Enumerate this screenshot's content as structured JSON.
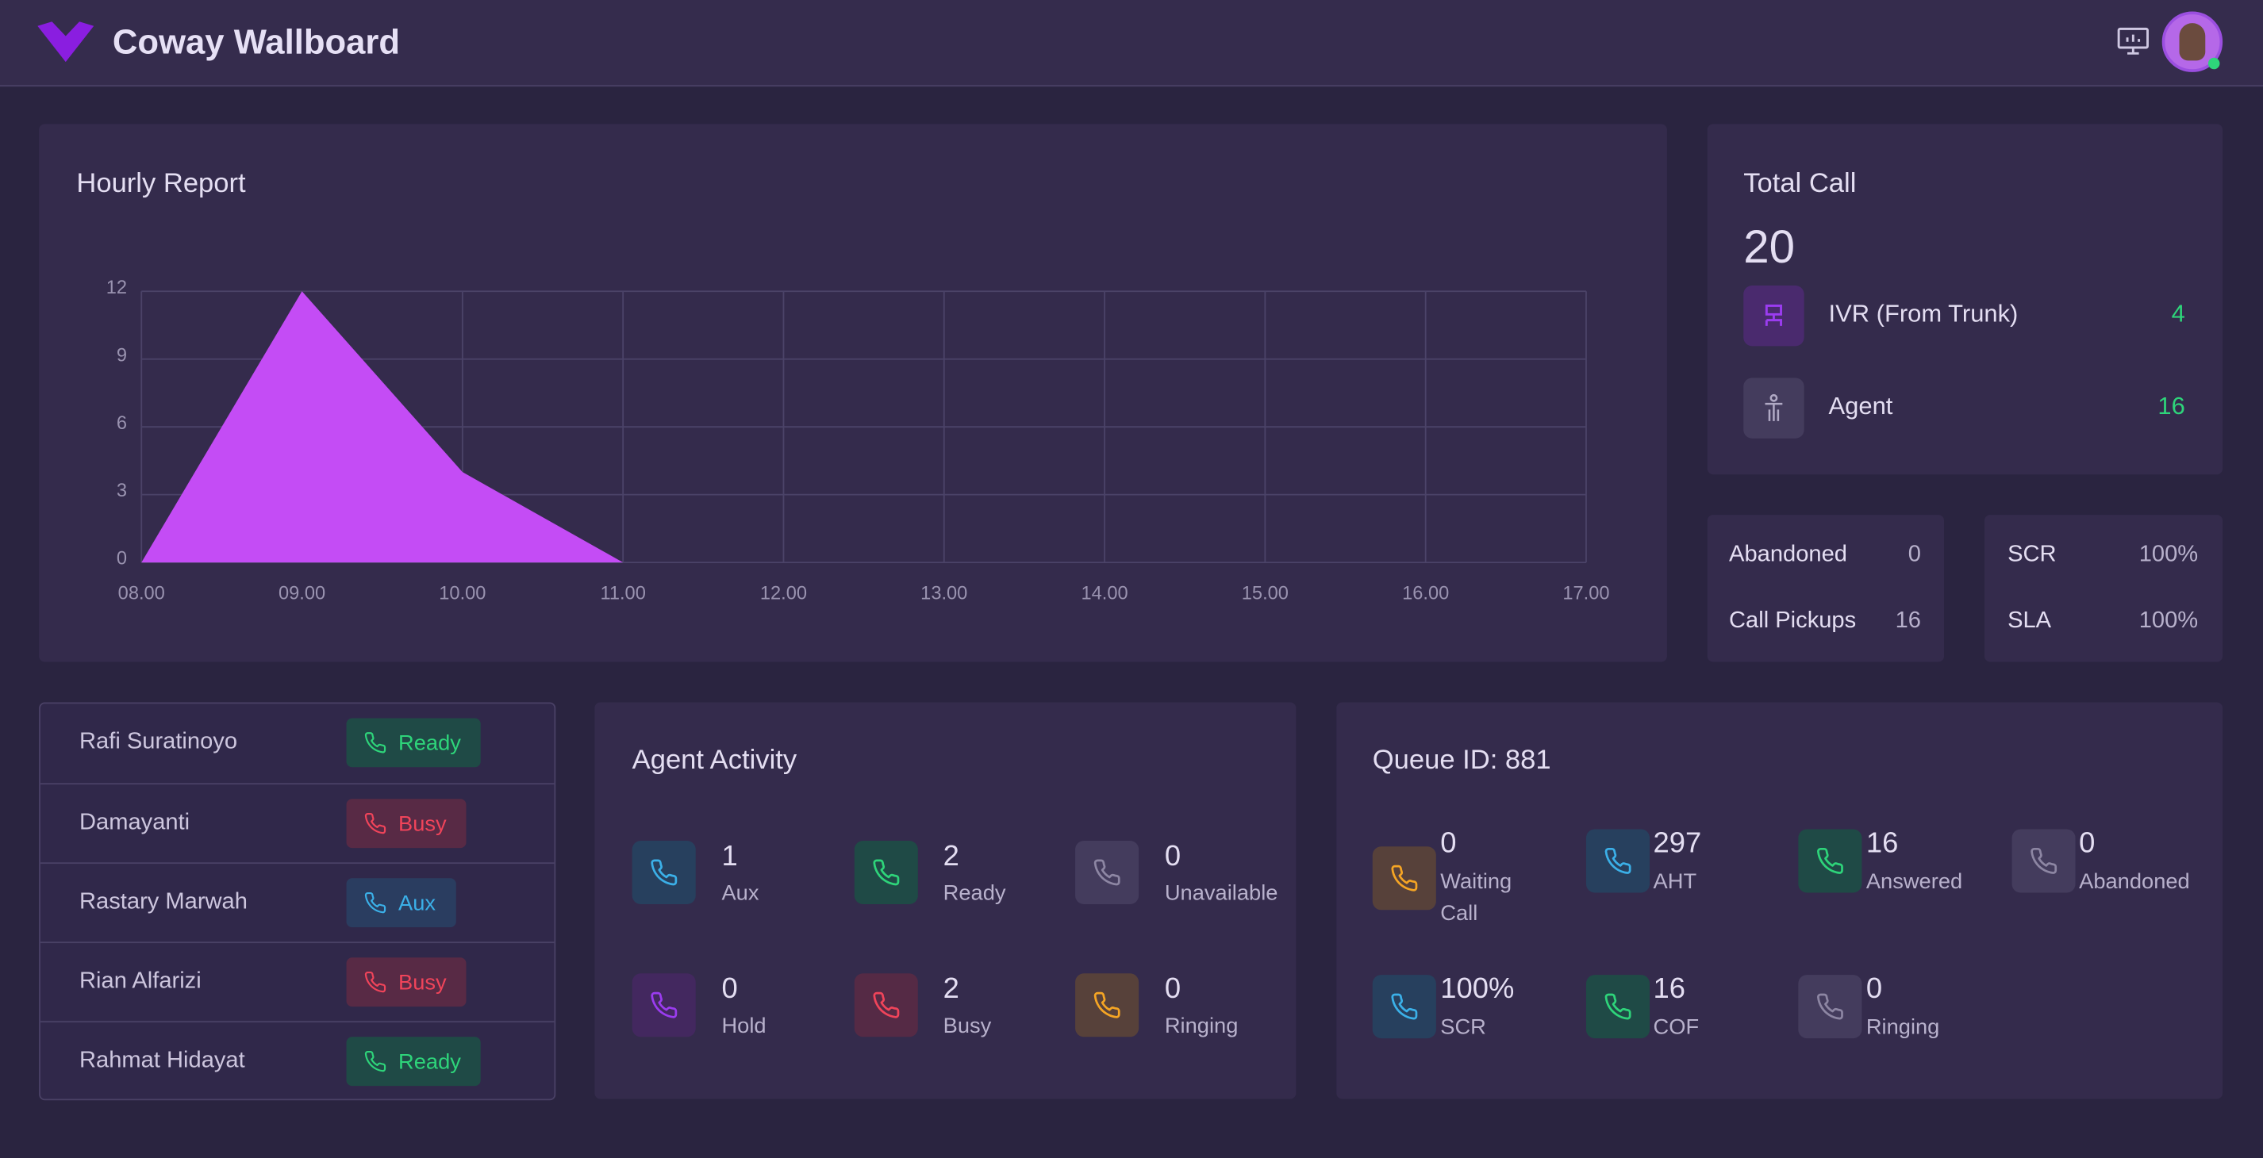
{
  "header": {
    "title": "Coway Wallboard"
  },
  "hourly_report": {
    "type": "area",
    "title": "Hourly Report",
    "categories": [
      "08.00",
      "09.00",
      "10.00",
      "11.00",
      "12.00",
      "13.00",
      "14.00",
      "15.00",
      "16.00",
      "17.00"
    ],
    "values": [
      0,
      12,
      4,
      0,
      null,
      null,
      null,
      null,
      null,
      null
    ],
    "color": "#c44cf5",
    "ylim": [
      0,
      12
    ],
    "yticks": [
      0,
      3,
      6,
      9,
      12
    ],
    "grid": true
  },
  "total_call": {
    "title": "Total Call",
    "total": 20,
    "items": [
      {
        "label": "IVR (From Trunk)",
        "value": 4
      },
      {
        "label": "Agent",
        "value": 16
      }
    ]
  },
  "stats": [
    {
      "rows": [
        {
          "label": "Abandoned",
          "value": 0
        },
        {
          "label": "Call Pickups",
          "value": 16
        }
      ]
    },
    {
      "rows": [
        {
          "label": "SCR",
          "value": "100%"
        },
        {
          "label": "SLA",
          "value": "100%"
        }
      ]
    }
  ],
  "agents": [
    {
      "name": "Rafi Suratinoyo",
      "status": "Ready"
    },
    {
      "name": "Damayanti",
      "status": "Busy"
    },
    {
      "name": "Rastary Marwah",
      "status": "Aux"
    },
    {
      "name": "Rian Alfarizi",
      "status": "Busy"
    },
    {
      "name": "Rahmat Hidayat",
      "status": "Ready"
    }
  ],
  "agent_activity": {
    "title": "Agent Activity",
    "items": [
      {
        "value": 1,
        "label": "Aux"
      },
      {
        "value": 2,
        "label": "Ready"
      },
      {
        "value": 0,
        "label": "Unavailable"
      },
      {
        "value": 0,
        "label": "Hold"
      },
      {
        "value": 2,
        "label": "Busy"
      },
      {
        "value": 0,
        "label": "Ringing"
      }
    ]
  },
  "queue": {
    "title": "Queue ID: 881",
    "items": [
      {
        "value": 0,
        "label": "Waiting Call"
      },
      {
        "value": 297,
        "label": "AHT"
      },
      {
        "value": 16,
        "label": "Answered"
      },
      {
        "value": 0,
        "label": "Abandoned"
      },
      {
        "value": "100%",
        "label": "SCR"
      },
      {
        "value": 16,
        "label": "COF"
      },
      {
        "value": 0,
        "label": "Ringing"
      }
    ]
  }
}
